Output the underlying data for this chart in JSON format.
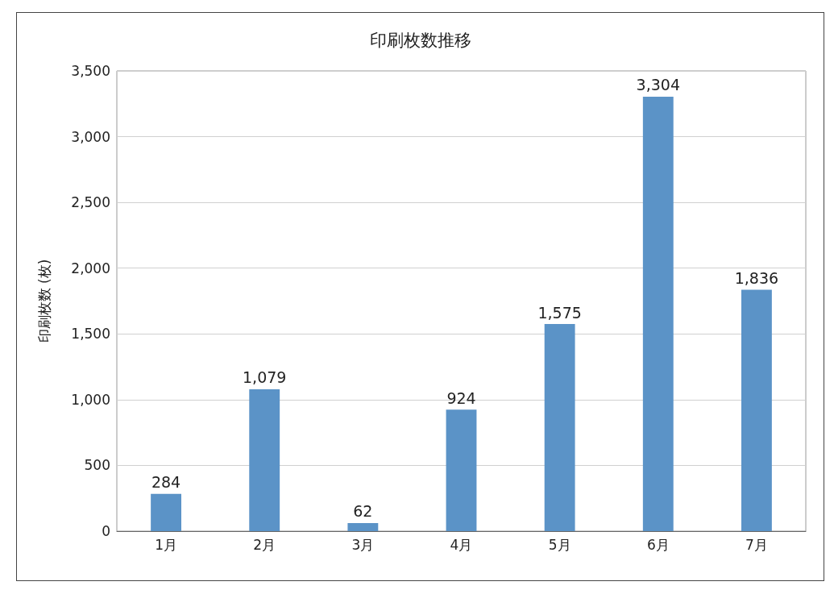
{
  "chart_data": {
    "type": "bar",
    "title": "印刷枚数推移",
    "ylabel": "印刷枚数 (枚)",
    "categories": [
      "1月",
      "2月",
      "3月",
      "4月",
      "5月",
      "6月",
      "7月"
    ],
    "values": [
      284,
      1079,
      62,
      924,
      1575,
      3304,
      1836
    ],
    "value_labels": [
      "284",
      "1,079",
      "62",
      "924",
      "1,575",
      "3,304",
      "1,836"
    ],
    "color": "#5b93c7",
    "ylim": [
      0,
      3500
    ],
    "yticks": [
      0,
      500,
      {
        "value": 1000,
        "label": "1,000"
      },
      {
        "value": 1500,
        "label": "1,500"
      },
      {
        "value": 2000,
        "label": "2,000"
      },
      {
        "value": 2500,
        "label": "2,500"
      },
      {
        "value": 3000,
        "label": "3,000"
      },
      {
        "value": 3500,
        "label": "3,500"
      }
    ],
    "grid": "y"
  }
}
